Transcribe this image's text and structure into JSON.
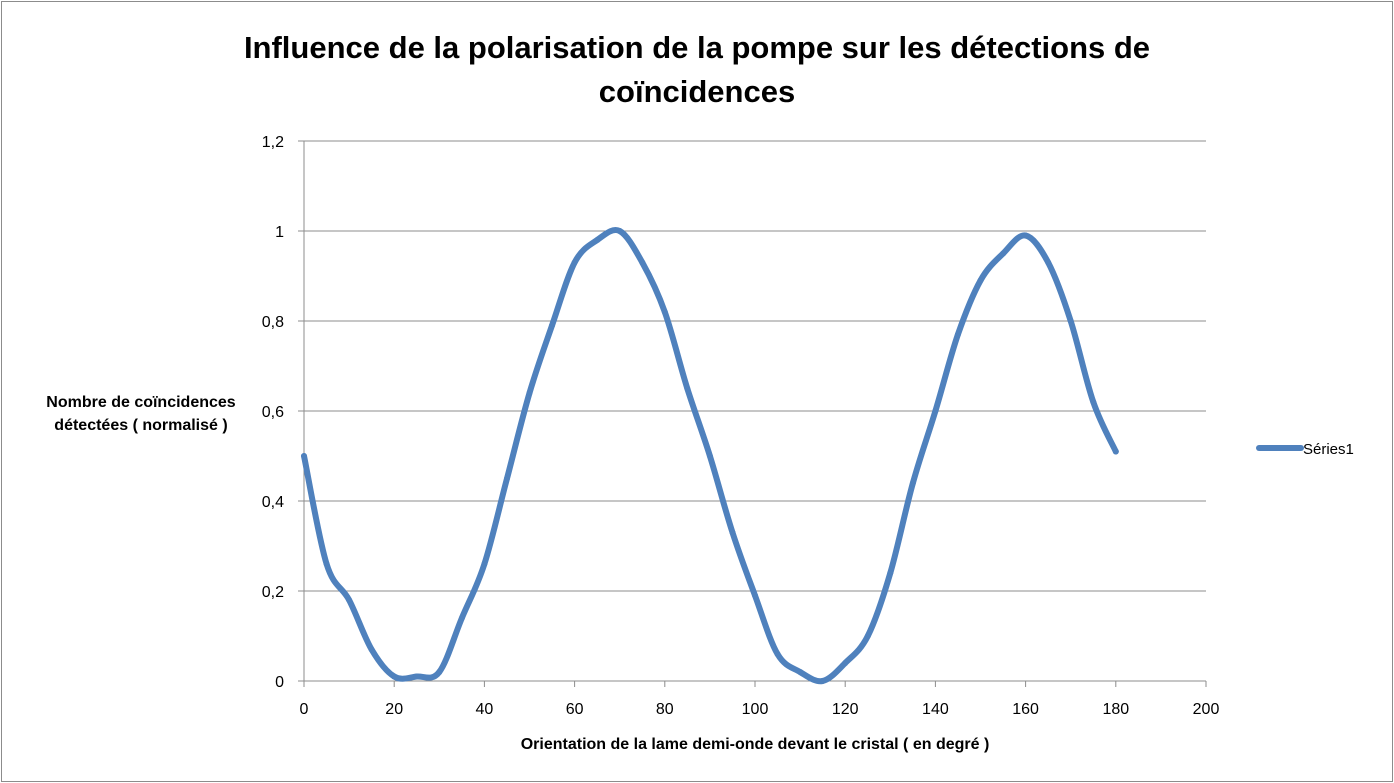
{
  "chart_data": {
    "type": "line",
    "title_lines": [
      "Influence de la polarisation de la pompe sur les détections de",
      "coïncidences"
    ],
    "xlabel": "Orientation de la lame demi-onde devant le cristal ( en degré )",
    "ylabel_lines": [
      "Nombre de coïncidences",
      "détectées ( normalisé )"
    ],
    "xlim": [
      0,
      200
    ],
    "ylim": [
      0,
      1.2
    ],
    "x_ticks": [
      "0",
      "20",
      "40",
      "60",
      "80",
      "100",
      "120",
      "140",
      "160",
      "180",
      "200"
    ],
    "y_ticks": [
      "0",
      "0,2",
      "0,4",
      "0,6",
      "0,8",
      "1",
      "1,2"
    ],
    "grid": "horizontal",
    "legend_position": "right",
    "series": [
      {
        "name": "Séries1",
        "color": "#4F81BD",
        "x": [
          0,
          5,
          10,
          15,
          20,
          25,
          30,
          35,
          40,
          45,
          50,
          55,
          60,
          65,
          70,
          75,
          80,
          85,
          90,
          95,
          100,
          105,
          110,
          115,
          120,
          125,
          130,
          135,
          140,
          145,
          150,
          155,
          160,
          165,
          170,
          175,
          180
        ],
        "values": [
          0.5,
          0.26,
          0.18,
          0.07,
          0.01,
          0.01,
          0.02,
          0.14,
          0.26,
          0.45,
          0.64,
          0.79,
          0.93,
          0.98,
          1.0,
          0.93,
          0.82,
          0.65,
          0.5,
          0.33,
          0.19,
          0.06,
          0.02,
          0.0,
          0.04,
          0.1,
          0.24,
          0.44,
          0.6,
          0.77,
          0.89,
          0.95,
          0.99,
          0.93,
          0.8,
          0.62,
          0.51
        ]
      }
    ]
  }
}
